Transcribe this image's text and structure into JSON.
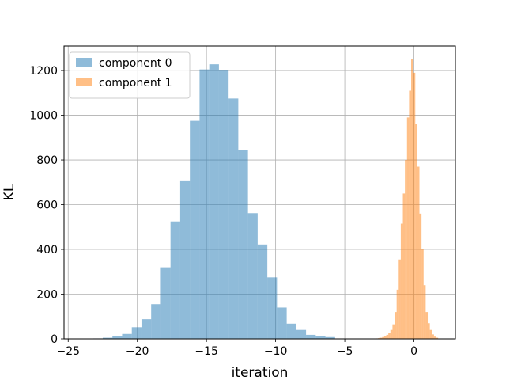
{
  "chart_data": {
    "type": "histogram",
    "title": "",
    "xlabel": "iteration",
    "ylabel": "KL",
    "xlim": [
      -25.3,
      3.0
    ],
    "ylim": [
      0,
      1310
    ],
    "xticks": [
      -25,
      -20,
      -15,
      -10,
      -5,
      0
    ],
    "xtick_labels": [
      "−25",
      "−20",
      "−15",
      "−10",
      "−5",
      "0"
    ],
    "yticks": [
      0,
      200,
      400,
      600,
      800,
      1000,
      1200
    ],
    "ytick_labels": [
      "0",
      "200",
      "400",
      "600",
      "800",
      "1000",
      "1200"
    ],
    "grid": true,
    "legend_position": "upper left",
    "series": [
      {
        "name": "component 0",
        "color": "#1f77b4",
        "alpha": 0.5,
        "bin_edges": [
          -23.2,
          -22.5,
          -21.8,
          -21.1,
          -20.4,
          -19.7,
          -19.0,
          -18.3,
          -17.6,
          -16.9,
          -16.2,
          -15.5,
          -14.8,
          -14.1,
          -13.4,
          -12.7,
          -12.0,
          -11.3,
          -10.6,
          -9.9,
          -9.2,
          -8.5,
          -7.8,
          -7.1,
          -6.4,
          -5.7
        ],
        "counts": [
          2,
          5,
          12,
          22,
          52,
          88,
          155,
          320,
          525,
          705,
          975,
          1205,
          1228,
          1200,
          1075,
          845,
          562,
          422,
          275,
          140,
          68,
          40,
          18,
          12,
          8
        ]
      },
      {
        "name": "component 1",
        "color": "#ff7f0e",
        "alpha": 0.5,
        "bin_edges": [
          -2.75,
          -2.6,
          -2.45,
          -2.3,
          -2.15,
          -2.0,
          -1.85,
          -1.7,
          -1.55,
          -1.4,
          -1.25,
          -1.1,
          -0.95,
          -0.8,
          -0.65,
          -0.5,
          -0.35,
          -0.2,
          -0.05,
          0.1,
          0.25,
          0.4,
          0.55,
          0.7,
          0.85,
          1.0,
          1.15,
          1.3,
          1.45,
          1.6,
          1.75
        ],
        "counts": [
          2,
          3,
          5,
          8,
          12,
          18,
          28,
          40,
          65,
          120,
          220,
          355,
          515,
          650,
          800,
          990,
          1110,
          1250,
          1190,
          960,
          770,
          560,
          400,
          240,
          120,
          70,
          40,
          20,
          10,
          5
        ]
      }
    ]
  }
}
